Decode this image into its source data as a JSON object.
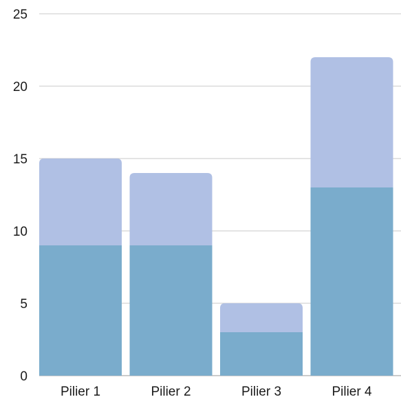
{
  "chart_data": {
    "type": "bar",
    "stacked": true,
    "categories": [
      "Pilier 1",
      "Pilier 2",
      "Pilier 3",
      "Pilier 4"
    ],
    "series": [
      {
        "values": [
          9,
          9,
          3,
          13
        ],
        "color": "#7aaccc"
      },
      {
        "values": [
          6,
          5,
          2,
          9
        ],
        "color": "#b0c0e4"
      }
    ],
    "totals": [
      15,
      14,
      5,
      22
    ],
    "title": "",
    "xlabel": "",
    "ylabel": "",
    "ylim": [
      0,
      25
    ],
    "yticks": [
      0,
      5,
      10,
      15,
      20,
      25
    ],
    "ytick_labels": [
      "0",
      "5",
      "10",
      "15",
      "20",
      "25"
    ],
    "grid": true,
    "legend": "none"
  }
}
